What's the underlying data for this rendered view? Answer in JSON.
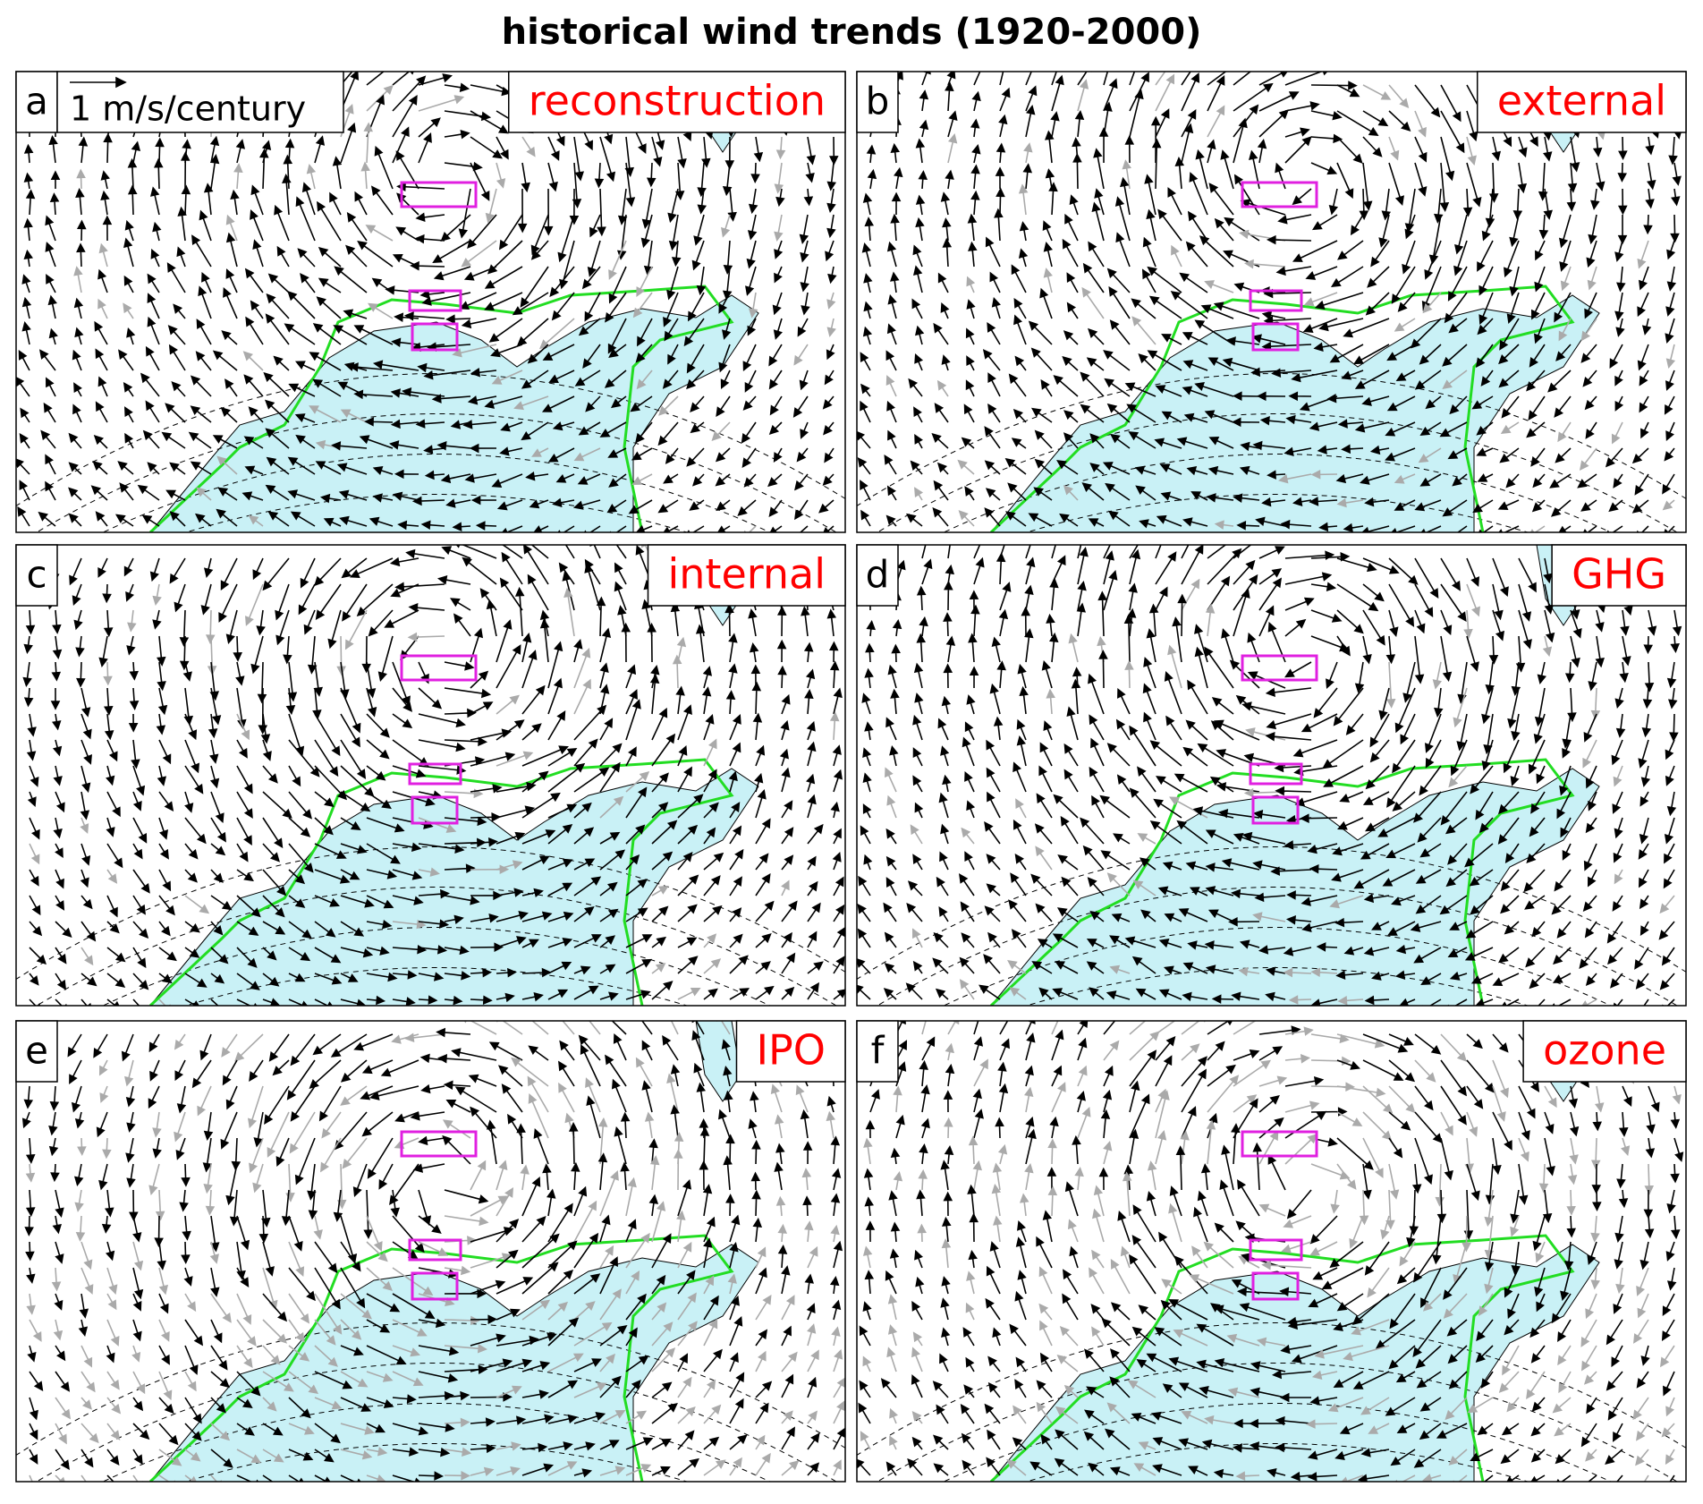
{
  "title": "historical wind trends (1920-2000)",
  "scale_label": "1 m/s/century",
  "panels": [
    {
      "letter": "a",
      "label": "reconstruction"
    },
    {
      "letter": "b",
      "label": "external"
    },
    {
      "letter": "c",
      "label": "internal"
    },
    {
      "letter": "d",
      "label": "GHG"
    },
    {
      "letter": "e",
      "label": "IPO"
    },
    {
      "letter": "f",
      "label": "ozone"
    }
  ]
}
